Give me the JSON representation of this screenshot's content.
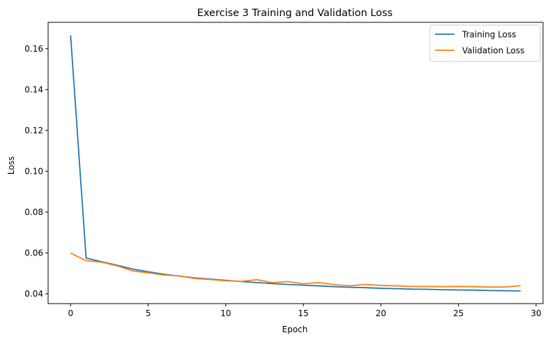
{
  "chart_data": {
    "type": "line",
    "title": "Exercise 3 Training and Validation Loss",
    "xlabel": "Epoch",
    "ylabel": "Loss",
    "xlim": [
      -1.45,
      30.45
    ],
    "ylim": [
      0.0352,
      0.1729
    ],
    "xticks": [
      0,
      5,
      10,
      15,
      20,
      25,
      30
    ],
    "yticks": [
      0.04,
      0.06,
      0.08,
      0.1,
      0.12,
      0.14,
      0.16
    ],
    "ytick_labels": [
      "0.04",
      "0.06",
      "0.08",
      "0.10",
      "0.12",
      "0.14",
      "0.16"
    ],
    "grid": false,
    "legend_position": "top-right",
    "x": [
      0,
      1,
      2,
      3,
      4,
      5,
      6,
      7,
      8,
      9,
      10,
      11,
      12,
      13,
      14,
      15,
      16,
      17,
      18,
      19,
      20,
      21,
      22,
      23,
      24,
      25,
      26,
      27,
      28,
      29
    ],
    "series": [
      {
        "name": "Training Loss",
        "color": "#1f77b4",
        "values": [
          0.1665,
          0.0575,
          0.0557,
          0.054,
          0.0521,
          0.0508,
          0.0496,
          0.0487,
          0.0478,
          0.0472,
          0.0466,
          0.046,
          0.0455,
          0.045,
          0.0446,
          0.0442,
          0.0439,
          0.0435,
          0.0432,
          0.043,
          0.0427,
          0.0425,
          0.0423,
          0.0422,
          0.042,
          0.0419,
          0.0418,
          0.0416,
          0.0415,
          0.0414
        ]
      },
      {
        "name": "Validation Loss",
        "color": "#ff7f0e",
        "values": [
          0.06,
          0.0562,
          0.0555,
          0.0537,
          0.0512,
          0.0503,
          0.0492,
          0.0488,
          0.0475,
          0.047,
          0.0464,
          0.0461,
          0.0469,
          0.0455,
          0.046,
          0.0449,
          0.0455,
          0.0445,
          0.0439,
          0.0446,
          0.0441,
          0.0439,
          0.0436,
          0.0436,
          0.0435,
          0.0436,
          0.0435,
          0.0433,
          0.0433,
          0.044
        ]
      }
    ]
  }
}
